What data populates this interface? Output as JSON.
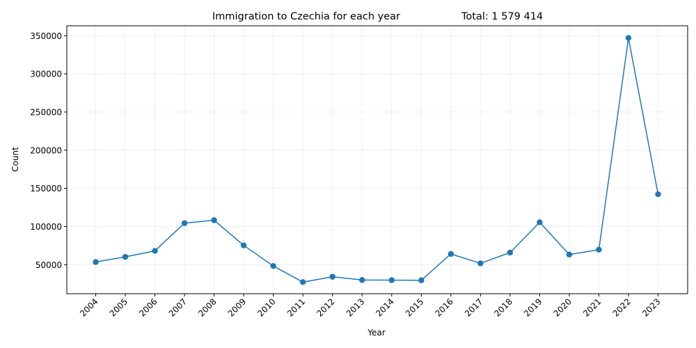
{
  "chart_data": {
    "type": "line",
    "title": "Immigration to Czechia for each year",
    "subtitle": "Total: 1 579 414",
    "xlabel": "Year",
    "ylabel": "Count",
    "x": [
      "2004",
      "2005",
      "2006",
      "2007",
      "2008",
      "2009",
      "2010",
      "2011",
      "2012",
      "2013",
      "2014",
      "2015",
      "2016",
      "2017",
      "2018",
      "2019",
      "2020",
      "2021",
      "2022",
      "2023"
    ],
    "series": [
      {
        "values": [
          53500,
          60300,
          68100,
          104400,
          108300,
          75300,
          48300,
          27200,
          34200,
          30000,
          29800,
          29600,
          64100,
          51800,
          65900,
          105600,
          63300,
          69700,
          347000,
          142300
        ],
        "color": "#1f77b4",
        "marker": "circle"
      }
    ],
    "ylim": [
      12000,
      363000
    ],
    "yticks": [
      50000,
      100000,
      150000,
      200000,
      250000,
      300000,
      350000
    ],
    "ytick_labels": [
      "50000",
      "100000",
      "150000",
      "200000",
      "250000",
      "300000",
      "350000"
    ],
    "grid": true,
    "x_tick_rotation": 45
  },
  "colors": {
    "line": "#1f77b4",
    "grid": "#ebebeb",
    "axis": "#000000"
  }
}
